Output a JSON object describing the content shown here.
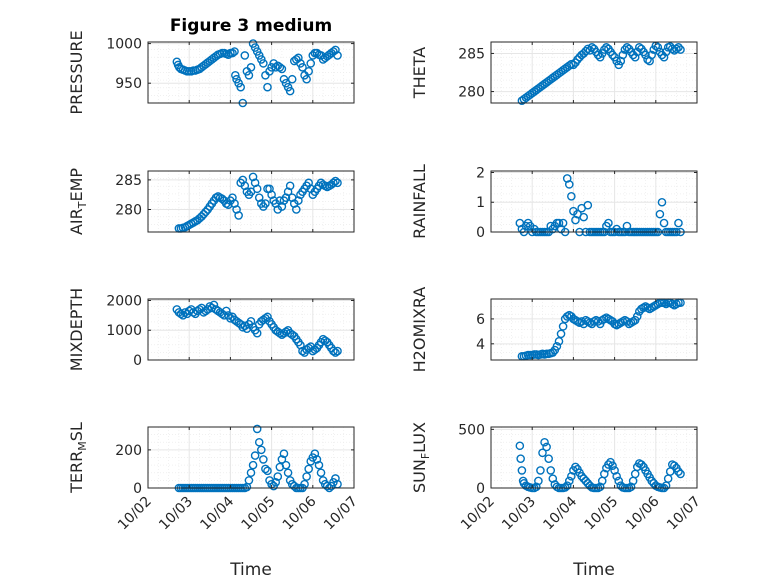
{
  "figure": {
    "title": "Figure 3 medium",
    "xlabel": "Time",
    "xticks": [
      "10/02",
      "10/03",
      "10/04",
      "10/05",
      "10/06",
      "10/07"
    ],
    "marker_color": "#0072BD",
    "grid_color": "#e6e6e6",
    "axis_color": "#262626"
  },
  "chart_data": [
    {
      "type": "scatter",
      "name": "pressure",
      "ylabel": "PRESSURE",
      "xlim": [
        2,
        7
      ],
      "ylim": [
        925,
        1002
      ],
      "yticks": [
        950,
        1000
      ],
      "x": [
        2.7,
        2.73,
        2.76,
        2.8,
        2.85,
        2.9,
        2.95,
        3.0,
        3.05,
        3.1,
        3.15,
        3.2,
        3.25,
        3.3,
        3.35,
        3.4,
        3.45,
        3.5,
        3.55,
        3.6,
        3.65,
        3.7,
        3.75,
        3.8,
        3.85,
        3.9,
        3.95,
        4.0,
        4.05,
        4.1,
        4.12,
        4.15,
        4.2,
        4.25,
        4.3,
        4.35,
        4.4,
        4.45,
        4.5,
        4.55,
        4.6,
        4.65,
        4.7,
        4.75,
        4.8,
        4.85,
        4.9,
        4.95,
        5.0,
        5.05,
        5.1,
        5.15,
        5.2,
        5.25,
        5.3,
        5.35,
        5.4,
        5.45,
        5.5,
        5.55,
        5.6,
        5.65,
        5.7,
        5.75,
        5.8,
        5.85,
        5.9,
        5.95,
        6.0,
        6.05,
        6.1,
        6.15,
        6.2,
        6.25,
        6.3,
        6.35,
        6.4,
        6.45,
        6.5,
        6.55,
        6.6
      ],
      "y": [
        977,
        973,
        970,
        968,
        967,
        966,
        965,
        965,
        965,
        966,
        966,
        967,
        968,
        970,
        972,
        974,
        976,
        978,
        980,
        982,
        984,
        986,
        987,
        988,
        988,
        987,
        986,
        988,
        988,
        990,
        960,
        955,
        950,
        945,
        925,
        985,
        965,
        960,
        970,
        1000,
        995,
        990,
        985,
        980,
        975,
        960,
        945,
        965,
        970,
        975,
        970,
        972,
        970,
        968,
        955,
        950,
        945,
        940,
        955,
        978,
        980,
        982,
        975,
        970,
        960,
        955,
        965,
        975,
        985,
        988,
        988,
        986,
        985,
        980,
        982,
        984,
        986,
        988,
        990,
        992,
        985
      ]
    },
    {
      "type": "scatter",
      "name": "theta",
      "ylabel": "THETA",
      "xlim": [
        2,
        7
      ],
      "ylim": [
        278.5,
        286.5
      ],
      "yticks": [
        280,
        285
      ],
      "x": [
        2.75,
        2.8,
        2.85,
        2.9,
        2.95,
        3.0,
        3.05,
        3.1,
        3.15,
        3.2,
        3.25,
        3.3,
        3.35,
        3.4,
        3.45,
        3.5,
        3.55,
        3.6,
        3.65,
        3.7,
        3.75,
        3.8,
        3.85,
        3.9,
        3.95,
        4.0,
        4.05,
        4.1,
        4.15,
        4.2,
        4.25,
        4.3,
        4.35,
        4.4,
        4.45,
        4.5,
        4.55,
        4.6,
        4.65,
        4.7,
        4.75,
        4.8,
        4.85,
        4.9,
        4.95,
        5.0,
        5.05,
        5.1,
        5.15,
        5.2,
        5.25,
        5.3,
        5.35,
        5.4,
        5.45,
        5.5,
        5.55,
        5.6,
        5.65,
        5.7,
        5.75,
        5.8,
        5.85,
        5.9,
        5.95,
        6.0,
        6.05,
        6.1,
        6.15,
        6.2,
        6.25,
        6.3,
        6.35,
        6.4,
        6.45,
        6.5,
        6.55,
        6.6
      ],
      "y": [
        278.8,
        279.0,
        279.2,
        279.4,
        279.6,
        279.8,
        280.0,
        280.2,
        280.4,
        280.6,
        280.8,
        281.0,
        281.2,
        281.4,
        281.6,
        281.8,
        282.0,
        282.2,
        282.4,
        282.6,
        282.8,
        283.0,
        283.2,
        283.4,
        283.6,
        283.5,
        283.8,
        284.2,
        284.5,
        284.8,
        285.0,
        285.3,
        285.6,
        285.4,
        285.8,
        285.6,
        285.2,
        284.8,
        284.5,
        285.0,
        285.5,
        285.8,
        285.6,
        285.2,
        284.8,
        284.5,
        284.0,
        283.5,
        284.0,
        284.8,
        285.5,
        285.8,
        285.6,
        285.2,
        284.8,
        284.5,
        285.2,
        285.8,
        285.6,
        285.2,
        284.8,
        284.2,
        284.0,
        284.8,
        285.5,
        286.0,
        285.8,
        285.2,
        284.8,
        284.5,
        285.2,
        285.8,
        285.9,
        285.6,
        285.4,
        285.6,
        285.8,
        285.5
      ]
    },
    {
      "type": "scatter",
      "name": "air-temp",
      "ylabel": "AIR_TEMP",
      "xlim": [
        2,
        7
      ],
      "ylim": [
        276.2,
        286.5
      ],
      "yticks": [
        280,
        285
      ],
      "x": [
        2.75,
        2.8,
        2.85,
        2.9,
        2.95,
        3.0,
        3.05,
        3.1,
        3.15,
        3.2,
        3.25,
        3.3,
        3.35,
        3.4,
        3.45,
        3.5,
        3.55,
        3.6,
        3.65,
        3.7,
        3.75,
        3.8,
        3.85,
        3.9,
        3.95,
        4.0,
        4.05,
        4.1,
        4.15,
        4.2,
        4.25,
        4.3,
        4.35,
        4.4,
        4.45,
        4.5,
        4.55,
        4.6,
        4.65,
        4.7,
        4.75,
        4.8,
        4.85,
        4.9,
        4.95,
        5.0,
        5.05,
        5.1,
        5.15,
        5.2,
        5.25,
        5.3,
        5.35,
        5.4,
        5.45,
        5.5,
        5.55,
        5.6,
        5.65,
        5.7,
        5.75,
        5.8,
        5.85,
        5.9,
        5.95,
        6.0,
        6.05,
        6.1,
        6.15,
        6.2,
        6.25,
        6.3,
        6.35,
        6.4,
        6.45,
        6.5,
        6.55,
        6.6
      ],
      "y": [
        276.8,
        276.8,
        276.9,
        277.0,
        277.2,
        277.4,
        277.6,
        277.8,
        278.0,
        278.2,
        278.5,
        278.8,
        279.2,
        279.6,
        280.0,
        280.5,
        281.0,
        281.5,
        282.0,
        282.2,
        282.0,
        281.8,
        281.5,
        281.0,
        280.8,
        281.5,
        282.0,
        281.0,
        280.0,
        279.0,
        284.5,
        285.0,
        284.0,
        283.0,
        282.5,
        283.0,
        285.5,
        284.5,
        283.5,
        282.0,
        281.0,
        280.5,
        281.0,
        283.5,
        283.5,
        282.5,
        281.5,
        281.0,
        280.0,
        281.5,
        280.5,
        281.5,
        282.0,
        283.0,
        284.0,
        282.0,
        281.0,
        280.0,
        281.5,
        282.5,
        283.0,
        283.5,
        284.0,
        284.5,
        283.5,
        282.5,
        283.0,
        283.5,
        284.0,
        284.5,
        284.2,
        284.0,
        283.8,
        284.0,
        284.2,
        284.5,
        284.8,
        284.5
      ]
    },
    {
      "type": "scatter",
      "name": "rainfall",
      "ylabel": "RAINFALL",
      "xlim": [
        2,
        7
      ],
      "ylim": [
        0,
        2.05
      ],
      "yticks": [
        0,
        1,
        2
      ],
      "x": [
        2.7,
        2.75,
        2.8,
        2.85,
        2.9,
        2.95,
        3.0,
        3.05,
        3.1,
        3.15,
        3.2,
        3.25,
        3.3,
        3.35,
        3.4,
        3.45,
        3.5,
        3.55,
        3.6,
        3.65,
        3.7,
        3.75,
        3.8,
        3.85,
        3.9,
        3.95,
        4.0,
        4.05,
        4.1,
        4.15,
        4.2,
        4.25,
        4.3,
        4.35,
        4.4,
        4.45,
        4.5,
        4.55,
        4.6,
        4.65,
        4.7,
        4.75,
        4.8,
        4.85,
        4.9,
        4.95,
        5.0,
        5.05,
        5.1,
        5.15,
        5.2,
        5.25,
        5.3,
        5.35,
        5.4,
        5.45,
        5.5,
        5.55,
        5.6,
        5.65,
        5.7,
        5.75,
        5.8,
        5.85,
        5.9,
        5.95,
        6.0,
        6.05,
        6.1,
        6.15,
        6.2,
        6.25,
        6.3,
        6.35,
        6.4,
        6.45,
        6.5,
        6.55,
        6.6
      ],
      "y": [
        0.3,
        0.1,
        0.0,
        0.2,
        0.3,
        0.2,
        0.0,
        0.1,
        0.0,
        0.0,
        0.0,
        0.0,
        0.0,
        0.0,
        0.0,
        0.2,
        0.1,
        0.2,
        0.3,
        0.3,
        0.1,
        0.3,
        0.0,
        1.8,
        1.6,
        1.2,
        0.7,
        0.4,
        0.6,
        0.0,
        0.8,
        0.5,
        0.0,
        0.9,
        0.0,
        0.0,
        0.0,
        0.0,
        0.0,
        0.0,
        0.0,
        0.0,
        0.2,
        0.3,
        0.0,
        0.0,
        0.0,
        0.1,
        0.0,
        0.0,
        0.0,
        0.0,
        0.2,
        0.0,
        0.0,
        0.0,
        0.0,
        0.0,
        0.0,
        0.0,
        0.0,
        0.0,
        0.0,
        0.0,
        0.0,
        0.0,
        0.0,
        0.0,
        0.6,
        1.0,
        0.3,
        0.0,
        0.0,
        0.0,
        0.0,
        0.0,
        0.0,
        0.3,
        0.0
      ]
    },
    {
      "type": "scatter",
      "name": "mixdepth",
      "ylabel": "MIXDEPTH",
      "xlim": [
        2,
        7
      ],
      "ylim": [
        0,
        2050
      ],
      "yticks": [
        0,
        1000,
        2000
      ],
      "x": [
        2.7,
        2.75,
        2.8,
        2.85,
        2.9,
        2.95,
        3.0,
        3.05,
        3.1,
        3.15,
        3.2,
        3.25,
        3.3,
        3.35,
        3.4,
        3.45,
        3.5,
        3.55,
        3.6,
        3.65,
        3.7,
        3.75,
        3.8,
        3.85,
        3.9,
        3.95,
        4.0,
        4.05,
        4.1,
        4.15,
        4.2,
        4.25,
        4.3,
        4.35,
        4.4,
        4.45,
        4.5,
        4.55,
        4.6,
        4.65,
        4.7,
        4.75,
        4.8,
        4.85,
        4.9,
        4.95,
        5.0,
        5.05,
        5.1,
        5.15,
        5.2,
        5.25,
        5.3,
        5.35,
        5.4,
        5.45,
        5.5,
        5.55,
        5.6,
        5.65,
        5.7,
        5.75,
        5.8,
        5.85,
        5.9,
        5.95,
        6.0,
        6.05,
        6.1,
        6.15,
        6.2,
        6.25,
        6.3,
        6.35,
        6.4,
        6.45,
        6.5,
        6.55,
        6.6
      ],
      "y": [
        1700,
        1600,
        1550,
        1500,
        1600,
        1550,
        1650,
        1700,
        1600,
        1550,
        1650,
        1700,
        1750,
        1600,
        1650,
        1700,
        1800,
        1750,
        1850,
        1700,
        1650,
        1600,
        1550,
        1500,
        1650,
        1500,
        1400,
        1450,
        1350,
        1300,
        1250,
        1200,
        1100,
        1150,
        1050,
        1200,
        1300,
        1100,
        1000,
        900,
        1200,
        1300,
        1350,
        1400,
        1450,
        1300,
        1200,
        1100,
        1000,
        950,
        900,
        850,
        900,
        950,
        1000,
        900,
        850,
        800,
        700,
        600,
        500,
        300,
        250,
        350,
        400,
        450,
        300,
        350,
        400,
        500,
        600,
        700,
        650,
        600,
        500,
        400,
        300,
        250,
        300
      ]
    },
    {
      "type": "scatter",
      "name": "h2omixra",
      "ylabel": "H2OMIXRA",
      "xlim": [
        2,
        7
      ],
      "ylim": [
        2.7,
        7.6
      ],
      "yticks": [
        4,
        6
      ],
      "x": [
        2.75,
        2.8,
        2.85,
        2.9,
        2.95,
        3.0,
        3.05,
        3.1,
        3.15,
        3.2,
        3.25,
        3.3,
        3.35,
        3.4,
        3.45,
        3.5,
        3.55,
        3.6,
        3.65,
        3.7,
        3.75,
        3.8,
        3.85,
        3.9,
        3.95,
        4.0,
        4.05,
        4.1,
        4.15,
        4.2,
        4.25,
        4.3,
        4.35,
        4.4,
        4.45,
        4.5,
        4.55,
        4.6,
        4.65,
        4.7,
        4.75,
        4.8,
        4.85,
        4.9,
        4.95,
        5.0,
        5.05,
        5.1,
        5.15,
        5.2,
        5.25,
        5.3,
        5.35,
        5.4,
        5.45,
        5.5,
        5.55,
        5.6,
        5.65,
        5.7,
        5.75,
        5.8,
        5.85,
        5.9,
        5.95,
        6.0,
        6.05,
        6.1,
        6.15,
        6.2,
        6.25,
        6.3,
        6.35,
        6.4,
        6.45,
        6.5,
        6.55,
        6.6
      ],
      "y": [
        3.0,
        3.0,
        3.05,
        3.1,
        3.1,
        3.1,
        3.15,
        3.15,
        3.1,
        3.15,
        3.2,
        3.15,
        3.2,
        3.2,
        3.25,
        3.3,
        3.5,
        3.8,
        4.2,
        4.8,
        5.4,
        6.0,
        6.2,
        6.3,
        6.2,
        6.0,
        5.9,
        5.8,
        5.7,
        5.8,
        5.6,
        5.9,
        5.8,
        5.7,
        5.6,
        5.8,
        5.9,
        5.8,
        5.6,
        5.9,
        6.0,
        6.1,
        6.0,
        5.9,
        5.8,
        5.6,
        5.5,
        5.6,
        5.7,
        5.8,
        5.9,
        5.8,
        5.6,
        5.7,
        5.8,
        5.9,
        6.2,
        6.6,
        6.8,
        6.9,
        7.0,
        6.9,
        6.8,
        6.9,
        7.0,
        7.1,
        7.2,
        7.3,
        7.3,
        7.3,
        7.2,
        7.3,
        7.3,
        7.2,
        7.1,
        7.2,
        7.3,
        7.3
      ]
    },
    {
      "type": "scatter",
      "name": "terr-msl",
      "ylabel": "TERR_MSL",
      "xlim": [
        2,
        7
      ],
      "ylim": [
        0,
        320
      ],
      "yticks": [
        0,
        200
      ],
      "x": [
        2.75,
        2.8,
        2.85,
        2.9,
        2.95,
        3.0,
        3.05,
        3.1,
        3.15,
        3.2,
        3.25,
        3.3,
        3.35,
        3.4,
        3.45,
        3.5,
        3.55,
        3.6,
        3.65,
        3.7,
        3.75,
        3.8,
        3.85,
        3.9,
        3.95,
        4.0,
        4.05,
        4.1,
        4.15,
        4.2,
        4.25,
        4.3,
        4.35,
        4.4,
        4.45,
        4.5,
        4.55,
        4.6,
        4.65,
        4.7,
        4.75,
        4.8,
        4.85,
        4.9,
        4.95,
        5.0,
        5.05,
        5.1,
        5.15,
        5.2,
        5.25,
        5.3,
        5.35,
        5.4,
        5.45,
        5.5,
        5.55,
        5.6,
        5.65,
        5.7,
        5.75,
        5.8,
        5.85,
        5.9,
        5.95,
        6.0,
        6.05,
        6.1,
        6.15,
        6.2,
        6.25,
        6.3,
        6.35,
        6.4,
        6.45,
        6.5,
        6.55,
        6.6
      ],
      "y": [
        0,
        0,
        0,
        0,
        0,
        0,
        0,
        0,
        0,
        0,
        0,
        0,
        0,
        0,
        0,
        0,
        0,
        0,
        0,
        0,
        0,
        0,
        0,
        0,
        0,
        0,
        0,
        0,
        0,
        0,
        0,
        0,
        0,
        5,
        40,
        80,
        120,
        170,
        310,
        240,
        200,
        150,
        100,
        90,
        40,
        20,
        10,
        30,
        60,
        110,
        150,
        180,
        120,
        80,
        40,
        20,
        10,
        0,
        0,
        0,
        0,
        20,
        60,
        100,
        140,
        160,
        180,
        150,
        120,
        80,
        40,
        20,
        10,
        0,
        10,
        30,
        50,
        20
      ]
    },
    {
      "type": "scatter",
      "name": "sun-flux",
      "ylabel": "SUN_FLUX",
      "xlim": [
        2,
        7
      ],
      "ylim": [
        0,
        520
      ],
      "yticks": [
        0,
        500
      ],
      "x": [
        2.7,
        2.72,
        2.75,
        2.78,
        2.8,
        2.85,
        2.9,
        2.95,
        3.0,
        3.05,
        3.1,
        3.15,
        3.2,
        3.25,
        3.3,
        3.35,
        3.4,
        3.45,
        3.5,
        3.55,
        3.6,
        3.65,
        3.7,
        3.75,
        3.8,
        3.85,
        3.9,
        3.95,
        4.0,
        4.05,
        4.1,
        4.15,
        4.2,
        4.25,
        4.3,
        4.35,
        4.4,
        4.45,
        4.5,
        4.55,
        4.6,
        4.65,
        4.7,
        4.75,
        4.8,
        4.85,
        4.9,
        4.95,
        5.0,
        5.05,
        5.1,
        5.15,
        5.2,
        5.25,
        5.3,
        5.35,
        5.4,
        5.45,
        5.5,
        5.55,
        5.6,
        5.65,
        5.7,
        5.75,
        5.8,
        5.85,
        5.9,
        5.95,
        6.0,
        6.05,
        6.1,
        6.15,
        6.2,
        6.25,
        6.3,
        6.35,
        6.4,
        6.45,
        6.5,
        6.55,
        6.6
      ],
      "y": [
        360,
        250,
        150,
        60,
        40,
        20,
        10,
        5,
        0,
        0,
        10,
        60,
        150,
        300,
        390,
        350,
        250,
        150,
        80,
        30,
        10,
        0,
        0,
        0,
        5,
        20,
        60,
        100,
        150,
        180,
        160,
        130,
        100,
        80,
        60,
        40,
        20,
        5,
        0,
        0,
        0,
        10,
        60,
        120,
        170,
        200,
        220,
        190,
        150,
        100,
        60,
        20,
        5,
        0,
        0,
        0,
        10,
        60,
        120,
        180,
        210,
        200,
        180,
        150,
        120,
        90,
        60,
        40,
        20,
        10,
        5,
        0,
        0,
        20,
        80,
        140,
        200,
        190,
        170,
        140,
        120
      ]
    }
  ]
}
